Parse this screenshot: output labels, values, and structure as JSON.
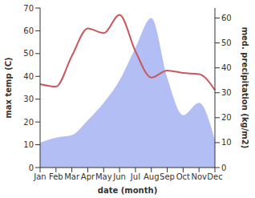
{
  "chart_data": {
    "type": "line",
    "x_label": "date (month)",
    "y_label": "max temp (C)",
    "y2_label": "med. precipitation (kg/m2)",
    "categories": [
      "Jan",
      "Feb",
      "Mar",
      "Apr",
      "May",
      "Jun",
      "Jul",
      "Aug",
      "Sep",
      "Oct",
      "Nov",
      "Dec"
    ],
    "ylim": [
      0,
      70
    ],
    "yticks": [
      0,
      10,
      20,
      30,
      40,
      50,
      60,
      70
    ],
    "y2lim": [
      0,
      64
    ],
    "y2ticks": [
      0,
      10,
      20,
      30,
      40,
      50,
      60
    ],
    "grid": false,
    "series": [
      {
        "type": "area",
        "axis": "y2",
        "color": "#b3bef4",
        "values": [
          10,
          12,
          13,
          19,
          26,
          35,
          48,
          60,
          36,
          21,
          26,
          11
        ]
      },
      {
        "type": "line",
        "axis": "y",
        "color": "#c8595e",
        "values": [
          36.6,
          35.5,
          49,
          61,
          59,
          67,
          51,
          39.5,
          42.6,
          41.5,
          41,
          34
        ]
      }
    ]
  }
}
